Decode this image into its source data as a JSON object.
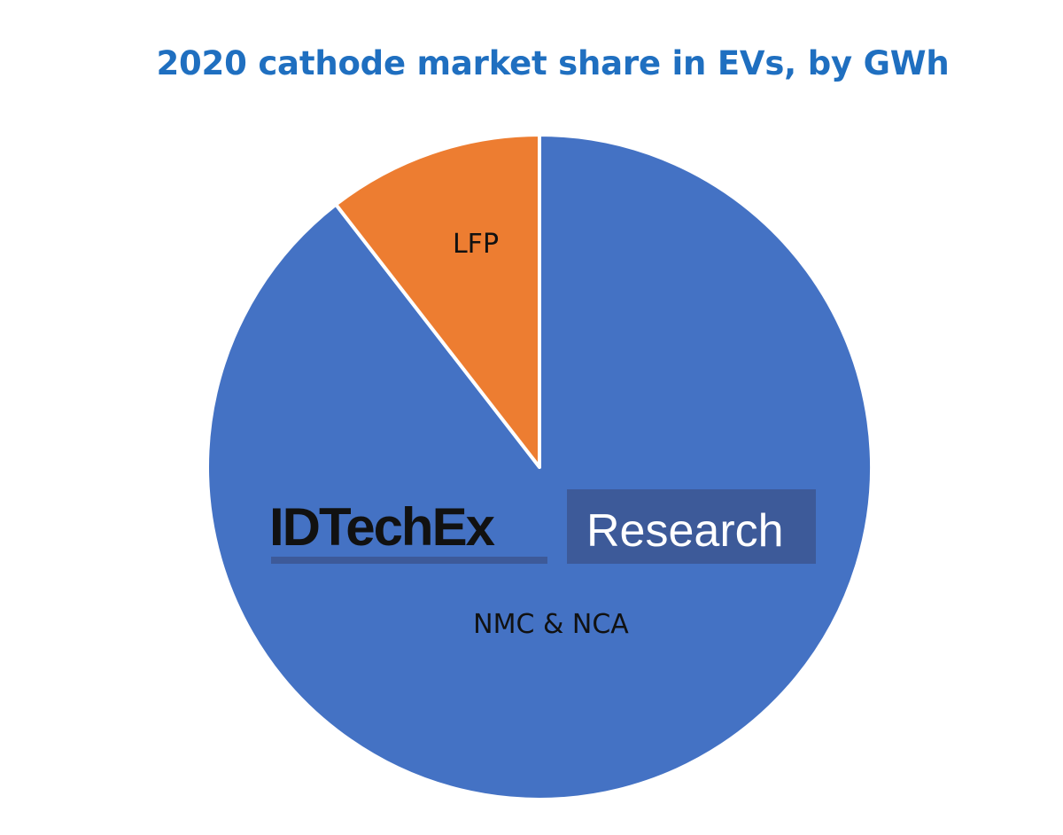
{
  "chart_data": {
    "type": "pie",
    "title": "2020 cathode market share in EVs, by GWh",
    "slices": [
      {
        "label": "NMC & NCA",
        "value": 89.5,
        "color": "#4472c4"
      },
      {
        "label": "LFP",
        "value": 10.5,
        "color": "#ed7d31"
      }
    ],
    "start": "12 o'clock",
    "direction": "clockwise",
    "slice_border_color": "#ffffff"
  },
  "watermark": {
    "brand": "IDTechEx",
    "tagline": "Research",
    "tagline_bg": "#3d5a99",
    "underline_color": "#3d5a99"
  }
}
